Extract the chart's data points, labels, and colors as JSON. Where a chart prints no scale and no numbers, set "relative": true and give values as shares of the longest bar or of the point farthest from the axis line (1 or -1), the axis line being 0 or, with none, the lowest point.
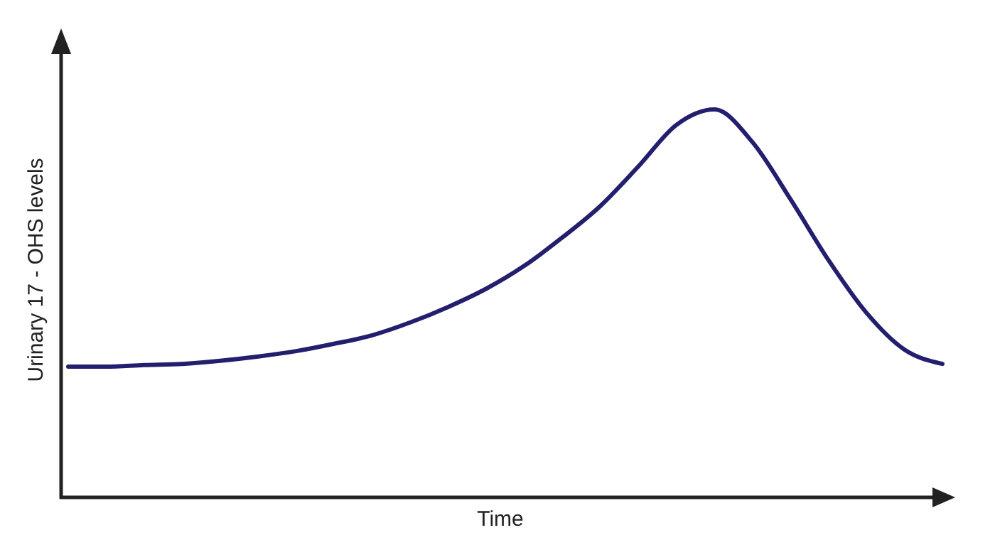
{
  "chart_data": {
    "type": "line",
    "relative": true,
    "xlabel": "Time",
    "ylabel": "Urinary 17 - OHS levels",
    "marker": "none",
    "line_style": "solid",
    "categories": [
      null,
      null,
      null,
      null,
      null,
      null,
      null,
      null,
      null,
      null,
      null,
      null,
      null,
      null,
      null,
      null,
      null,
      null,
      null,
      null,
      null,
      null,
      null,
      null
    ],
    "series": [
      {
        "color": "#231f6e",
        "values": [
          0.337,
          0.337,
          0.341,
          0.344,
          0.352,
          0.363,
          0.377,
          0.396,
          0.418,
          0.451,
          0.491,
          0.538,
          0.597,
          0.67,
          0.751,
          0.853,
          0.96,
          1,
          0.916,
          0.769,
          0.612,
          0.476,
          0.381,
          0.344
        ]
      }
    ]
  }
}
